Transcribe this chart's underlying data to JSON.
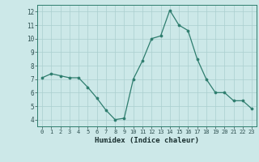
{
  "x": [
    0,
    1,
    2,
    3,
    4,
    5,
    6,
    7,
    8,
    9,
    10,
    11,
    12,
    13,
    14,
    15,
    16,
    17,
    18,
    19,
    20,
    21,
    22,
    23
  ],
  "y": [
    7.1,
    7.4,
    7.25,
    7.1,
    7.1,
    6.4,
    5.6,
    4.7,
    4.0,
    4.1,
    7.0,
    8.35,
    10.0,
    10.2,
    12.1,
    11.0,
    10.6,
    8.5,
    7.0,
    6.0,
    6.0,
    5.4,
    5.4,
    4.8
  ],
  "xlabel": "Humidex (Indice chaleur)",
  "ylim": [
    3.5,
    12.5
  ],
  "xlim": [
    -0.5,
    23.5
  ],
  "yticks": [
    4,
    5,
    6,
    7,
    8,
    9,
    10,
    11,
    12
  ],
  "xticks": [
    0,
    1,
    2,
    3,
    4,
    5,
    6,
    7,
    8,
    9,
    10,
    11,
    12,
    13,
    14,
    15,
    16,
    17,
    18,
    19,
    20,
    21,
    22,
    23
  ],
  "line_color": "#2e7d6e",
  "marker_color": "#2e7d6e",
  "bg_color": "#cce8e8",
  "grid_color": "#aacfcf",
  "border_color": "#2e7d6e",
  "tick_color": "#2e5050",
  "label_color": "#1a3030"
}
